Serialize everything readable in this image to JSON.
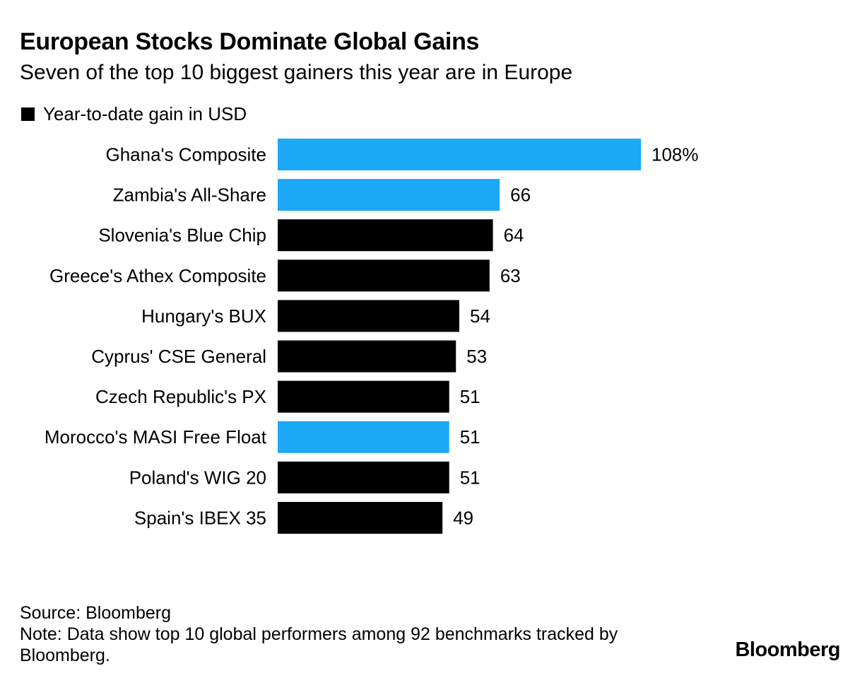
{
  "header": {
    "title": "European Stocks Dominate Global Gains",
    "subtitle": "Seven of the top 10 biggest gainers this year are in Europe"
  },
  "legend": {
    "label": "Year-to-date gain in USD",
    "color": "#000000"
  },
  "colors": {
    "europe": "#000000",
    "other": "#1ba8f5"
  },
  "chart_data": {
    "type": "bar",
    "orientation": "horizontal",
    "title": "European Stocks Dominate Global Gains",
    "subtitle": "Seven of the top 10 biggest gainers this year are in Europe",
    "xlabel": "",
    "ylabel": "",
    "xlim": [
      0,
      108
    ],
    "grid": false,
    "legend_position": "top-left",
    "value_suffix_first": "%",
    "categories": [
      "Ghana's Composite",
      "Zambia's All-Share",
      "Slovenia's Blue Chip",
      "Greece's Athex Composite",
      "Hungary's BUX",
      "Cyprus' CSE General",
      "Czech Republic's PX",
      "Morocco's MASI Free Float",
      "Poland's WIG 20",
      "Spain's IBEX 35"
    ],
    "values": [
      108,
      66,
      64,
      63,
      54,
      53,
      51,
      51,
      51,
      49
    ],
    "value_labels": [
      "108%",
      "66",
      "64",
      "63",
      "54",
      "53",
      "51",
      "51",
      "51",
      "49"
    ],
    "is_europe": [
      false,
      false,
      true,
      true,
      true,
      true,
      true,
      false,
      true,
      true
    ],
    "series": [
      {
        "name": "Year-to-date gain in USD",
        "values": [
          108,
          66,
          64,
          63,
          54,
          53,
          51,
          51,
          51,
          49
        ]
      }
    ]
  },
  "footer": {
    "source": "Source: Bloomberg",
    "note": "Note: Data show top 10 global performers among 92 benchmarks tracked by Bloomberg."
  },
  "brand": {
    "logo_text": "Bloomberg"
  }
}
